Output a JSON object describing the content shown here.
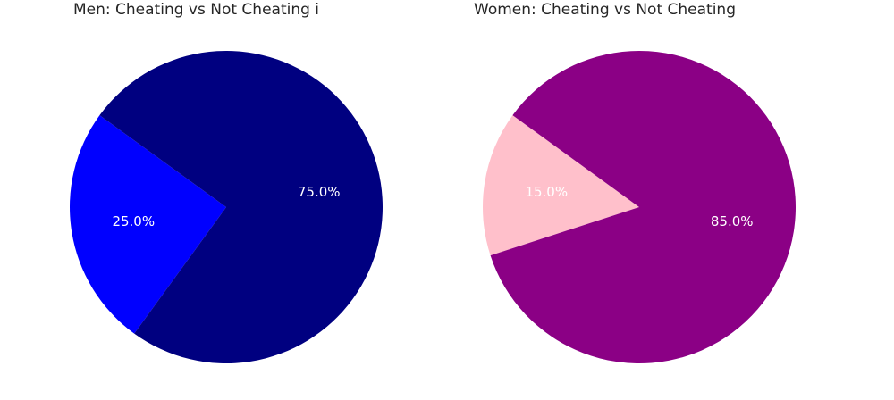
{
  "chart_data": [
    {
      "type": "pie",
      "title": "Men: Cheating vs Not Cheating i",
      "slices": [
        {
          "value": 25.0,
          "label": "25.0%",
          "color": "#0000ff"
        },
        {
          "value": 75.0,
          "label": "75.0%",
          "color": "#000080"
        }
      ]
    },
    {
      "type": "pie",
      "title": "Women: Cheating vs Not Cheating",
      "slices": [
        {
          "value": 15.0,
          "label": "15.0%",
          "color": "#ffc0cb"
        },
        {
          "value": 85.0,
          "label": "85.0%",
          "color": "#8b0085"
        }
      ]
    }
  ]
}
